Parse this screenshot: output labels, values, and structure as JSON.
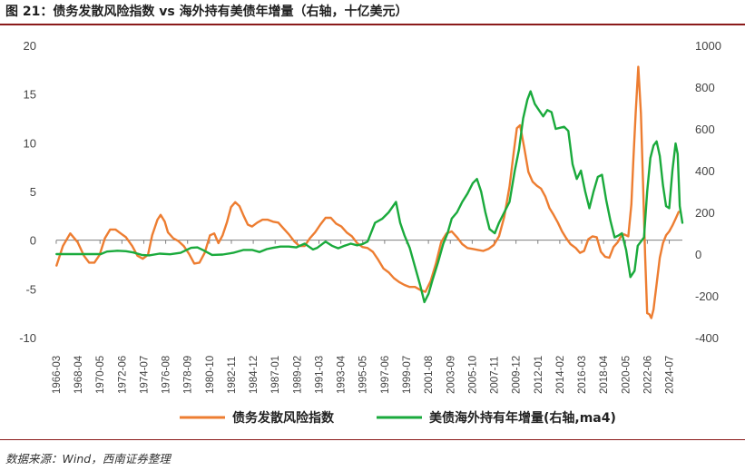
{
  "title": "图 21：债务发散风险指数 vs 海外持有美债年增量（右轴，十亿美元）",
  "source": "数据来源：Wind，西南证券整理",
  "chart_data": {
    "type": "line",
    "x_tick_labels": [
      "1966-03",
      "1968-04",
      "1970-05",
      "1972-06",
      "1974-07",
      "1976-08",
      "1978-09",
      "1980-10",
      "1982-11",
      "1984-12",
      "1987-01",
      "1989-02",
      "1991-03",
      "1993-04",
      "1995-05",
      "1997-06",
      "1999-07",
      "2001-08",
      "2003-09",
      "2005-10",
      "2007-11",
      "2009-12",
      "2012-01",
      "2014-02",
      "2016-03",
      "2018-04",
      "2020-05",
      "2022-06",
      "2024-07"
    ],
    "xlim": [
      1966.17,
      2025.75
    ],
    "left_axis": {
      "ticks": [
        "20",
        "15",
        "10",
        "5",
        "0",
        "-5",
        "-10"
      ],
      "ylim": [
        -10,
        20
      ]
    },
    "right_axis": {
      "ticks": [
        "1000",
        "800",
        "600",
        "400",
        "200",
        "0",
        "-200",
        "-400"
      ],
      "ylim": [
        -400,
        1000
      ]
    },
    "grid": false,
    "legend_position": "bottom",
    "series": [
      {
        "name": "债务发散风险指数",
        "axis": "left",
        "color": "#ED7D31",
        "points": [
          [
            1966.2,
            -2.6
          ],
          [
            1966.8,
            -0.6
          ],
          [
            1967.5,
            0.7
          ],
          [
            1968.2,
            -0.2
          ],
          [
            1968.8,
            -1.6
          ],
          [
            1969.3,
            -2.3
          ],
          [
            1969.8,
            -2.3
          ],
          [
            1970.3,
            -1.5
          ],
          [
            1970.8,
            0.2
          ],
          [
            1971.3,
            1.1
          ],
          [
            1971.8,
            1.1
          ],
          [
            1972.3,
            0.7
          ],
          [
            1972.8,
            0.3
          ],
          [
            1973.4,
            -0.6
          ],
          [
            1973.9,
            -1.6
          ],
          [
            1974.4,
            -1.9
          ],
          [
            1974.9,
            -1.5
          ],
          [
            1975.3,
            0.5
          ],
          [
            1975.8,
            2.1
          ],
          [
            1976.1,
            2.6
          ],
          [
            1976.5,
            1.9
          ],
          [
            1976.8,
            0.8
          ],
          [
            1977.3,
            0.2
          ],
          [
            1977.8,
            -0.1
          ],
          [
            1978.3,
            -0.6
          ],
          [
            1978.8,
            -1.4
          ],
          [
            1979.3,
            -2.4
          ],
          [
            1979.8,
            -2.3
          ],
          [
            1980.3,
            -1.3
          ],
          [
            1980.8,
            0.5
          ],
          [
            1981.2,
            0.7
          ],
          [
            1981.6,
            -0.3
          ],
          [
            1982.0,
            0.5
          ],
          [
            1982.4,
            1.8
          ],
          [
            1982.8,
            3.4
          ],
          [
            1983.2,
            3.9
          ],
          [
            1983.6,
            3.5
          ],
          [
            1984.0,
            2.5
          ],
          [
            1984.4,
            1.6
          ],
          [
            1984.8,
            1.4
          ],
          [
            1985.3,
            1.8
          ],
          [
            1985.8,
            2.1
          ],
          [
            1986.3,
            2.1
          ],
          [
            1986.8,
            1.9
          ],
          [
            1987.3,
            1.8
          ],
          [
            1987.8,
            1.2
          ],
          [
            1988.3,
            0.6
          ],
          [
            1988.8,
            -0.1
          ],
          [
            1989.3,
            -0.6
          ],
          [
            1989.8,
            -0.6
          ],
          [
            1990.3,
            0.2
          ],
          [
            1990.8,
            0.8
          ],
          [
            1991.3,
            1.6
          ],
          [
            1991.8,
            2.3
          ],
          [
            1992.3,
            2.3
          ],
          [
            1992.8,
            1.7
          ],
          [
            1993.3,
            1.4
          ],
          [
            1993.8,
            0.8
          ],
          [
            1994.3,
            0.4
          ],
          [
            1994.8,
            -0.3
          ],
          [
            1995.3,
            -0.7
          ],
          [
            1995.8,
            -0.8
          ],
          [
            1996.3,
            -1.2
          ],
          [
            1996.8,
            -2.0
          ],
          [
            1997.3,
            -2.9
          ],
          [
            1997.8,
            -3.3
          ],
          [
            1998.3,
            -3.9
          ],
          [
            1998.8,
            -4.3
          ],
          [
            1999.3,
            -4.6
          ],
          [
            1999.8,
            -4.8
          ],
          [
            2000.3,
            -4.8
          ],
          [
            2000.8,
            -5.1
          ],
          [
            2001.3,
            -5.3
          ],
          [
            2001.8,
            -4.2
          ],
          [
            2002.3,
            -2.4
          ],
          [
            2002.8,
            -0.2
          ],
          [
            2003.3,
            0.7
          ],
          [
            2003.8,
            0.9
          ],
          [
            2004.3,
            0.3
          ],
          [
            2004.8,
            -0.4
          ],
          [
            2005.3,
            -0.8
          ],
          [
            2005.8,
            -0.9
          ],
          [
            2006.3,
            -1.0
          ],
          [
            2006.8,
            -1.1
          ],
          [
            2007.3,
            -0.9
          ],
          [
            2007.8,
            -0.5
          ],
          [
            2008.3,
            0.4
          ],
          [
            2008.8,
            2.4
          ],
          [
            2009.3,
            5.5
          ],
          [
            2009.7,
            9.0
          ],
          [
            2010.0,
            11.5
          ],
          [
            2010.3,
            11.8
          ],
          [
            2010.7,
            9.5
          ],
          [
            2011.1,
            7.0
          ],
          [
            2011.5,
            6.0
          ],
          [
            2011.9,
            5.6
          ],
          [
            2012.3,
            5.3
          ],
          [
            2012.7,
            4.5
          ],
          [
            2013.1,
            3.3
          ],
          [
            2013.5,
            2.6
          ],
          [
            2013.9,
            1.8
          ],
          [
            2014.3,
            0.9
          ],
          [
            2014.7,
            0.2
          ],
          [
            2015.1,
            -0.4
          ],
          [
            2015.6,
            -0.8
          ],
          [
            2016.0,
            -1.3
          ],
          [
            2016.4,
            -1.1
          ],
          [
            2016.8,
            0.1
          ],
          [
            2017.2,
            0.4
          ],
          [
            2017.6,
            0.3
          ],
          [
            2018.0,
            -1.2
          ],
          [
            2018.4,
            -1.7
          ],
          [
            2018.8,
            -1.8
          ],
          [
            2019.2,
            -0.7
          ],
          [
            2019.6,
            -0.2
          ],
          [
            2019.9,
            0.4
          ],
          [
            2020.2,
            0.6
          ],
          [
            2020.6,
            0.4
          ],
          [
            2020.9,
            3.7
          ],
          [
            2021.1,
            8.5
          ],
          [
            2021.3,
            13.0
          ],
          [
            2021.55,
            17.8
          ],
          [
            2021.8,
            13.0
          ],
          [
            2022.0,
            6.0
          ],
          [
            2022.2,
            -1.5
          ],
          [
            2022.4,
            -7.5
          ],
          [
            2022.6,
            -7.6
          ],
          [
            2022.8,
            -8.0
          ],
          [
            2023.0,
            -7.1
          ],
          [
            2023.3,
            -4.5
          ],
          [
            2023.6,
            -1.8
          ],
          [
            2023.9,
            -0.3
          ],
          [
            2024.2,
            0.5
          ],
          [
            2024.5,
            0.9
          ],
          [
            2024.8,
            1.5
          ],
          [
            2025.1,
            2.2
          ],
          [
            2025.4,
            2.9
          ]
        ]
      },
      {
        "name": "美债海外持有年增量(右轴,ma4)",
        "axis": "right",
        "color": "#1AAA3C",
        "points": [
          [
            1966.2,
            0
          ],
          [
            1968.0,
            0
          ],
          [
            1969.5,
            0
          ],
          [
            1970.4,
            0
          ],
          [
            1971.0,
            12
          ],
          [
            1972.0,
            16
          ],
          [
            1972.8,
            14
          ],
          [
            1973.5,
            8
          ],
          [
            1974.3,
            -4
          ],
          [
            1975.0,
            -6
          ],
          [
            1976.0,
            2
          ],
          [
            1977.0,
            -1
          ],
          [
            1978.0,
            6
          ],
          [
            1979.0,
            30
          ],
          [
            1979.6,
            32
          ],
          [
            1980.2,
            18
          ],
          [
            1981.0,
            -4
          ],
          [
            1982.0,
            -2
          ],
          [
            1983.0,
            6
          ],
          [
            1984.0,
            20
          ],
          [
            1984.8,
            20
          ],
          [
            1985.5,
            10
          ],
          [
            1986.2,
            24
          ],
          [
            1986.8,
            30
          ],
          [
            1987.5,
            36
          ],
          [
            1988.3,
            36
          ],
          [
            1989.0,
            32
          ],
          [
            1989.8,
            50
          ],
          [
            1990.2,
            36
          ],
          [
            1990.6,
            22
          ],
          [
            1991.0,
            30
          ],
          [
            1991.8,
            60
          ],
          [
            1992.4,
            40
          ],
          [
            1993.0,
            28
          ],
          [
            1993.6,
            40
          ],
          [
            1994.2,
            50
          ],
          [
            1994.8,
            42
          ],
          [
            1995.3,
            48
          ],
          [
            1995.8,
            60
          ],
          [
            1996.5,
            150
          ],
          [
            1997.2,
            170
          ],
          [
            1997.8,
            200
          ],
          [
            1998.5,
            250
          ],
          [
            1998.9,
            150
          ],
          [
            1999.3,
            90
          ],
          [
            1999.8,
            30
          ],
          [
            2000.3,
            -60
          ],
          [
            2000.8,
            -150
          ],
          [
            2001.2,
            -230
          ],
          [
            2001.6,
            -190
          ],
          [
            2002.0,
            -120
          ],
          [
            2002.5,
            -40
          ],
          [
            2003.0,
            50
          ],
          [
            2003.4,
            100
          ],
          [
            2003.8,
            170
          ],
          [
            2004.3,
            200
          ],
          [
            2004.8,
            250
          ],
          [
            2005.3,
            290
          ],
          [
            2005.8,
            340
          ],
          [
            2006.2,
            360
          ],
          [
            2006.6,
            300
          ],
          [
            2007.0,
            200
          ],
          [
            2007.4,
            120
          ],
          [
            2007.9,
            100
          ],
          [
            2008.3,
            150
          ],
          [
            2008.8,
            200
          ],
          [
            2009.3,
            250
          ],
          [
            2009.8,
            400
          ],
          [
            2010.2,
            500
          ],
          [
            2010.6,
            650
          ],
          [
            2011.0,
            740
          ],
          [
            2011.3,
            780
          ],
          [
            2011.7,
            720
          ],
          [
            2012.1,
            690
          ],
          [
            2012.5,
            660
          ],
          [
            2012.9,
            690
          ],
          [
            2013.3,
            680
          ],
          [
            2013.7,
            600
          ],
          [
            2014.1,
            605
          ],
          [
            2014.5,
            610
          ],
          [
            2014.9,
            590
          ],
          [
            2015.3,
            430
          ],
          [
            2015.7,
            360
          ],
          [
            2016.1,
            400
          ],
          [
            2016.5,
            300
          ],
          [
            2016.9,
            220
          ],
          [
            2017.3,
            300
          ],
          [
            2017.7,
            370
          ],
          [
            2018.1,
            380
          ],
          [
            2018.5,
            260
          ],
          [
            2018.9,
            160
          ],
          [
            2019.3,
            80
          ],
          [
            2019.7,
            90
          ],
          [
            2020.0,
            100
          ],
          [
            2020.4,
            20
          ],
          [
            2020.8,
            -110
          ],
          [
            2021.2,
            -80
          ],
          [
            2021.5,
            40
          ],
          [
            2021.8,
            60
          ],
          [
            2022.1,
            80
          ],
          [
            2022.4,
            300
          ],
          [
            2022.7,
            460
          ],
          [
            2023.0,
            520
          ],
          [
            2023.3,
            540
          ],
          [
            2023.6,
            470
          ],
          [
            2023.9,
            330
          ],
          [
            2024.2,
            230
          ],
          [
            2024.5,
            220
          ],
          [
            2024.8,
            400
          ],
          [
            2025.1,
            530
          ],
          [
            2025.3,
            480
          ],
          [
            2025.5,
            230
          ],
          [
            2025.75,
            150
          ]
        ]
      }
    ]
  }
}
